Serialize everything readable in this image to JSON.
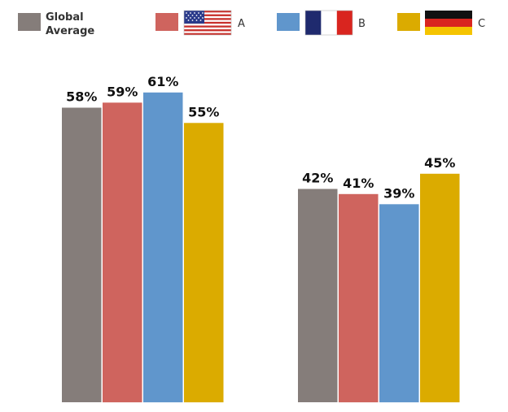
{
  "chart_data": {
    "type": "bar",
    "categories": [
      "",
      ""
    ],
    "series": [
      {
        "name": "Global Average",
        "values": [
          58,
          42
        ],
        "color": "#857d7a"
      },
      {
        "name": "A",
        "values": [
          59,
          41
        ],
        "color": "#cf645e",
        "flag": "us-flag-icon"
      },
      {
        "name": "B",
        "values": [
          61,
          39
        ],
        "color": "#6096cc",
        "flag": "france-flag-icon"
      },
      {
        "name": "C",
        "values": [
          55,
          45
        ],
        "color": "#dbab00",
        "flag": "germany-flag-icon"
      }
    ],
    "ylim": [
      0,
      65
    ],
    "value_suffix": "%",
    "grid": false,
    "legend_position": "top",
    "title": "",
    "xlabel": "",
    "ylabel": ""
  },
  "legend": {
    "global_line1": "Global",
    "global_line2": "Average",
    "a": "A",
    "b": "B",
    "c": "C"
  }
}
